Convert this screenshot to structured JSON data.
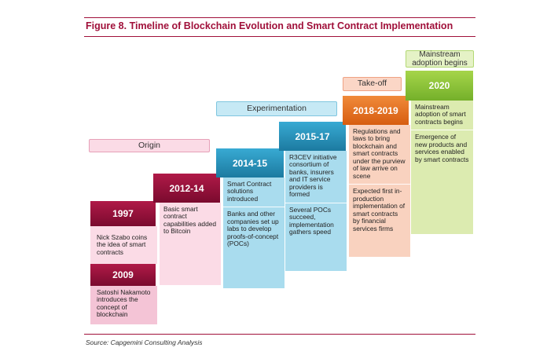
{
  "figure": {
    "title": "Figure 8. Timeline of Blockchain Evolution and Smart Contract Implementation",
    "source": "Source: Capgemini Consulting Analysis"
  },
  "phases": {
    "origin": "Origin",
    "experimentation": "Experimentation",
    "takeoff": "Take-off",
    "mainstream": "Mainstream adoption begins"
  },
  "steps": [
    {
      "year": "1997",
      "text": "Nick Szabo coins the idea of smart contracts"
    },
    {
      "year": "2009",
      "text": "Satoshi Nakamoto introduces the concept of blockchain"
    },
    {
      "year": "2012-14",
      "text": "Basic smart contract capabilities added to Bitcoin"
    },
    {
      "year": "2014-15",
      "items": [
        "Smart Contract solutions introduced",
        "Banks and other companies set up labs to develop proofs-of-concept (POCs)"
      ]
    },
    {
      "year": "2015-17",
      "items": [
        "R3CEV initiative consortium of banks, insurers and IT service providers is formed",
        "Several POCs succeed, implementation gathers speed"
      ]
    },
    {
      "year": "2018-2019",
      "items": [
        "Regulations and laws to bring blockchain and smart contracts under the purview of law arrive on scene",
        "Expected first in-production implementation of smart contracts by financial services firms"
      ]
    },
    {
      "year": "2020",
      "items": [
        "Mainstream adoption of smart contracts begins",
        "Emergence of new products and services enabled by smart contracts"
      ]
    }
  ],
  "colors": {
    "brand": "#a0103a",
    "pink_light": "#f4c4d6",
    "blue": "#2a97c0",
    "blue_light": "#a9dcee",
    "orange": "#e8711f",
    "orange_light": "#f9d2bf",
    "green": "#8fc63d",
    "green_light": "#dcebb0"
  }
}
